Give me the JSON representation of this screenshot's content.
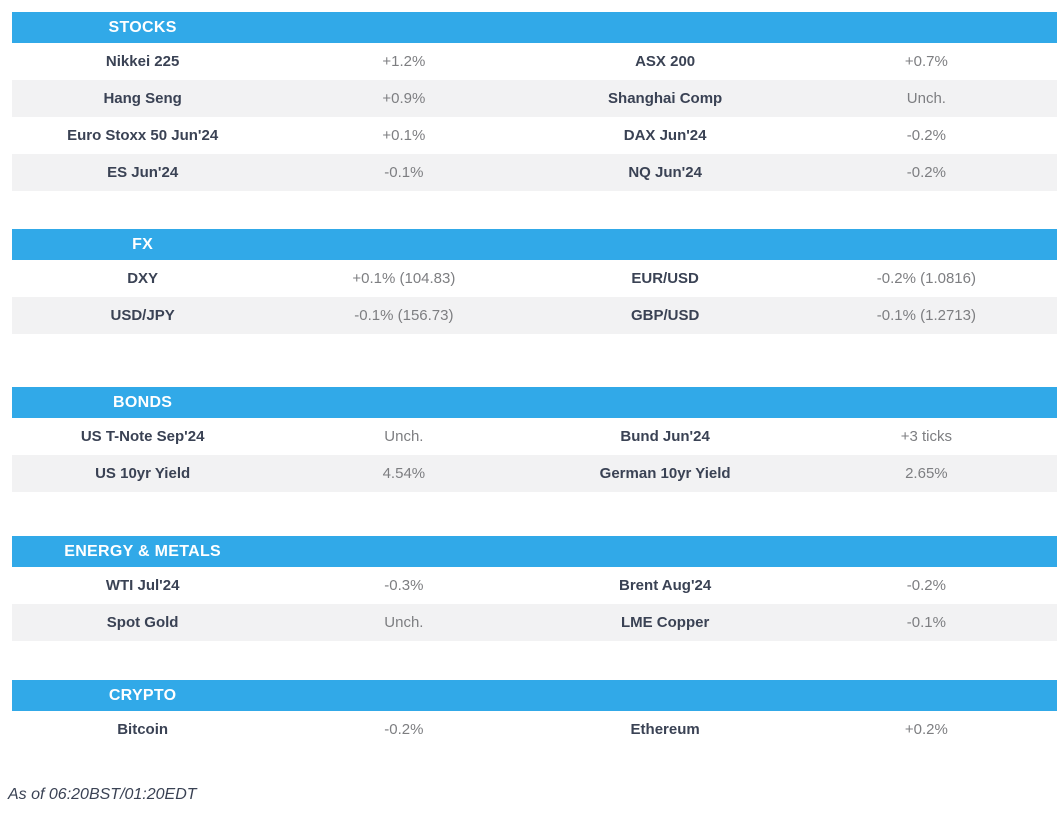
{
  "colors": {
    "header_bg": "#31A9E8",
    "header_text": "#FFFFFF",
    "stripe_bg": "#F2F2F3",
    "name_text": "#3A4254",
    "value_text": "#7D7E81"
  },
  "sections": [
    {
      "title": "STOCKS",
      "rows": [
        {
          "l_name": "Nikkei 225",
          "l_val": "+1.2%",
          "r_name": "ASX 200",
          "r_val": "+0.7%"
        },
        {
          "l_name": "Hang Seng",
          "l_val": "+0.9%",
          "r_name": "Shanghai Comp",
          "r_val": "Unch."
        },
        {
          "l_name": "Euro Stoxx 50 Jun'24",
          "l_val": "+0.1%",
          "r_name": "DAX Jun'24",
          "r_val": "-0.2%"
        },
        {
          "l_name": "ES Jun'24",
          "l_val": "-0.1%",
          "r_name": "NQ Jun'24",
          "r_val": "-0.2%"
        }
      ]
    },
    {
      "title": "FX",
      "rows": [
        {
          "l_name": "DXY",
          "l_val": "+0.1% (104.83)",
          "r_name": "EUR/USD",
          "r_val": "-0.2% (1.0816)"
        },
        {
          "l_name": "USD/JPY",
          "l_val": "-0.1% (156.73)",
          "r_name": "GBP/USD",
          "r_val": "-0.1% (1.2713)"
        }
      ]
    },
    {
      "title": "BONDS",
      "rows": [
        {
          "l_name": "US T-Note Sep'24",
          "l_val": "Unch.",
          "r_name": "Bund Jun'24",
          "r_val": "+3 ticks"
        },
        {
          "l_name": "US 10yr Yield",
          "l_val": "4.54%",
          "r_name": "German 10yr Yield",
          "r_val": "2.65%"
        }
      ]
    },
    {
      "title": "ENERGY & METALS",
      "rows": [
        {
          "l_name": "WTI Jul'24",
          "l_val": "-0.3%",
          "r_name": "Brent Aug'24",
          "r_val": "-0.2%"
        },
        {
          "l_name": "Spot Gold",
          "l_val": "Unch.",
          "r_name": "LME Copper",
          "r_val": "-0.1%"
        }
      ]
    },
    {
      "title": "CRYPTO",
      "rows": [
        {
          "l_name": "Bitcoin",
          "l_val": "-0.2%",
          "r_name": "Ethereum",
          "r_val": "+0.2%"
        }
      ]
    }
  ],
  "footer": {
    "as_of": "As of 06:20BST/01:20EDT"
  }
}
